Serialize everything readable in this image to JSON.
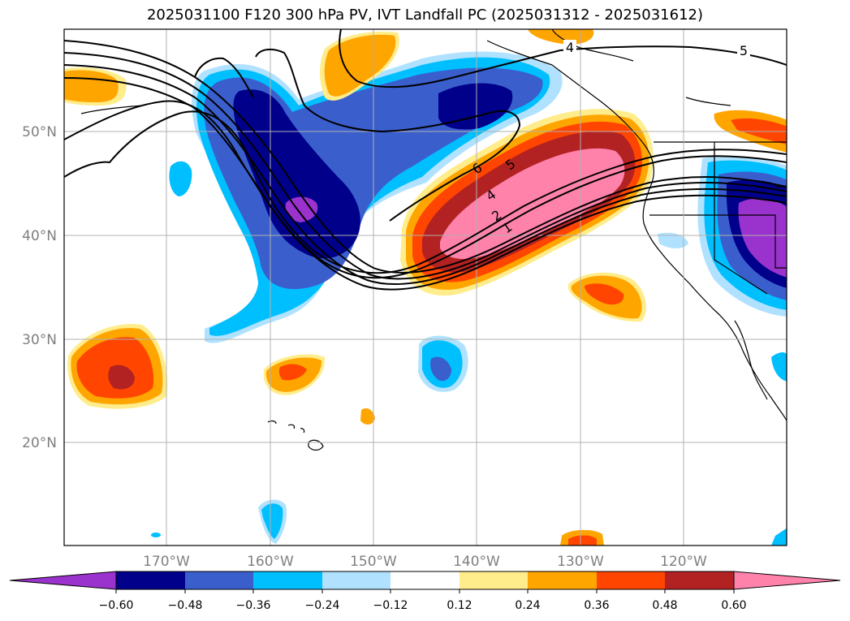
{
  "title": "2025031100 F120 300 hPa PV, IVT Landfall PC (2025031312 - 2025031612)",
  "map": {
    "lat_labels": [
      "50°N",
      "40°N",
      "30°N",
      "20°N"
    ],
    "lon_labels": [
      "170°W",
      "160°W",
      "150°W",
      "140°W",
      "130°W",
      "120°W"
    ],
    "contour_labels": [
      "4",
      "5",
      "6",
      "5",
      "4",
      "2",
      "1"
    ]
  },
  "colorbar": {
    "ticks": [
      "−0.60",
      "−0.48",
      "−0.36",
      "−0.24",
      "−0.12",
      "0.12",
      "0.24",
      "0.36",
      "0.48",
      "0.60"
    ],
    "colors": [
      "#9a32cd",
      "#00008b",
      "#3a5fcd",
      "#00bfff",
      "#b0e2ff",
      "#ffffff",
      "#ffec8b",
      "#ffa500",
      "#ff4500",
      "#b22222",
      "#ff82ab"
    ]
  }
}
